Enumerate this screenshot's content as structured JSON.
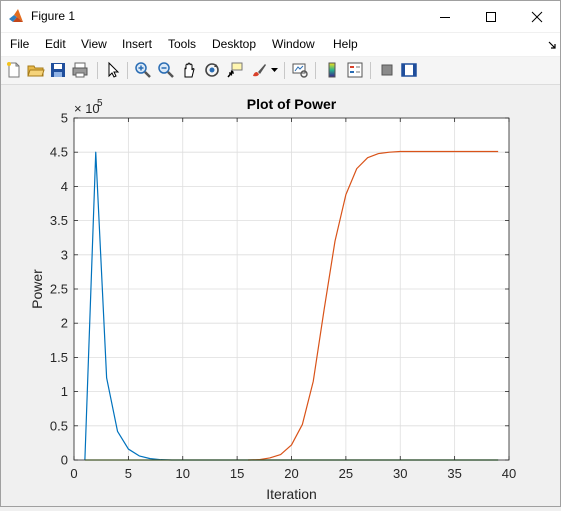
{
  "window": {
    "title": "Figure 1",
    "icon": "matlab-icon"
  },
  "menu": [
    "File",
    "Edit",
    "View",
    "Insert",
    "Tools",
    "Desktop",
    "Window",
    "Help"
  ],
  "toolbar_icons": [
    "new-figure-icon",
    "open-file-icon",
    "save-icon",
    "print-icon",
    "edit-plot-arrow-icon",
    "zoom-in-icon",
    "zoom-out-icon",
    "pan-icon",
    "rotate-3d-icon",
    "data-cursor-icon",
    "brush-icon",
    "link-plot-icon",
    "insert-colorbar-icon",
    "insert-legend-icon",
    "hide-plot-tools-icon",
    "show-plot-tools-icon"
  ],
  "chart_data": {
    "type": "line",
    "title": "Plot of Power",
    "xlabel": "Iteration",
    "ylabel": "Power",
    "exponent_label": "× 10",
    "exponent_power": "5",
    "xlim": [
      0,
      40
    ],
    "ylim": [
      0,
      5
    ],
    "xticks": [
      "0",
      "5",
      "10",
      "15",
      "20",
      "25",
      "30",
      "35",
      "40"
    ],
    "yticks": [
      "0",
      "0.5",
      "1",
      "1.5",
      "2",
      "2.5",
      "3",
      "3.5",
      "4",
      "4.5",
      "5"
    ],
    "grid": true,
    "series": [
      {
        "color": "#0072bd",
        "x": [
          1,
          2,
          3,
          4,
          5,
          6,
          7,
          8,
          9,
          10,
          11,
          12,
          13,
          14,
          15,
          16,
          17,
          18,
          19,
          20,
          21,
          22,
          23,
          24,
          25,
          26,
          27,
          28,
          29,
          30,
          31,
          32,
          33,
          34,
          35,
          36,
          37,
          38,
          39
        ],
        "y": [
          0,
          4.5,
          1.2,
          0.42,
          0.16,
          0.06,
          0.02,
          0.005,
          0,
          0,
          0,
          0,
          0,
          0,
          0,
          0,
          0,
          0,
          0,
          0,
          0,
          0,
          0,
          0,
          0,
          0,
          0,
          0,
          0,
          0,
          0,
          0,
          0,
          0,
          0,
          0,
          0,
          0,
          0
        ]
      },
      {
        "color": "#d95319",
        "x": [
          16,
          17,
          18,
          19,
          20,
          21,
          22,
          23,
          24,
          25,
          26,
          27,
          28,
          29,
          30,
          31,
          32,
          33,
          34,
          35,
          36,
          37,
          38,
          39
        ],
        "y": [
          0,
          0.005,
          0.03,
          0.08,
          0.22,
          0.52,
          1.15,
          2.2,
          3.2,
          3.88,
          4.26,
          4.42,
          4.48,
          4.5,
          4.51,
          4.51,
          4.51,
          4.51,
          4.51,
          4.51,
          4.51,
          4.51,
          4.51,
          4.51
        ]
      },
      {
        "color": "#77ac30",
        "x": [
          1,
          39
        ],
        "y": [
          0,
          0
        ]
      }
    ]
  }
}
